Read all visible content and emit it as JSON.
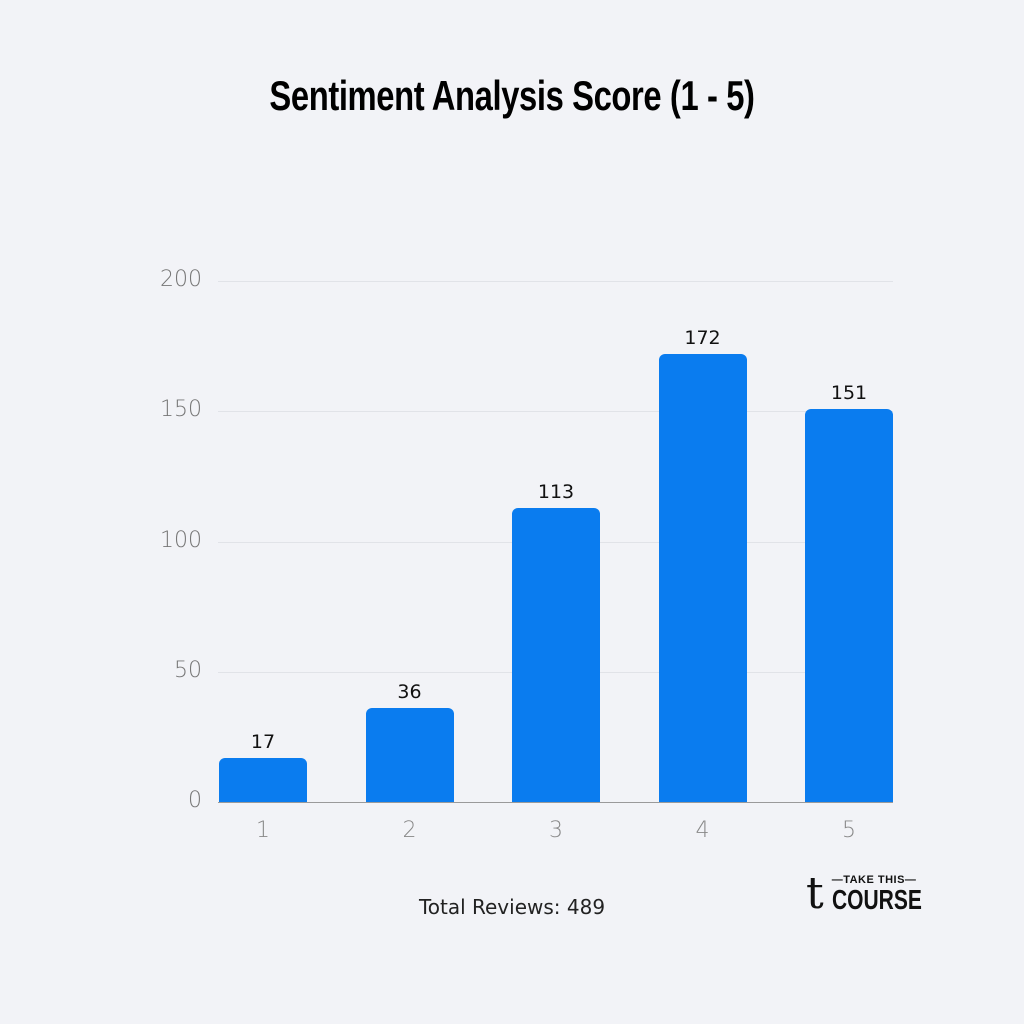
{
  "chart_data": {
    "type": "bar",
    "title": "Sentiment Analysis Score (1 - 5)",
    "categories": [
      "1",
      "2",
      "3",
      "4",
      "5"
    ],
    "values": [
      17,
      36,
      113,
      172,
      151
    ],
    "xlabel": "",
    "ylabel": "",
    "ylim": [
      0,
      200
    ],
    "yticks": [
      "0",
      "50",
      "100",
      "150",
      "200"
    ],
    "grid": true,
    "bar_color": "#0a7cef",
    "footer": "Total Reviews: 489"
  },
  "logo": {
    "mark": "t",
    "top": "—TAKE THIS—",
    "bottom": "COURSE"
  }
}
